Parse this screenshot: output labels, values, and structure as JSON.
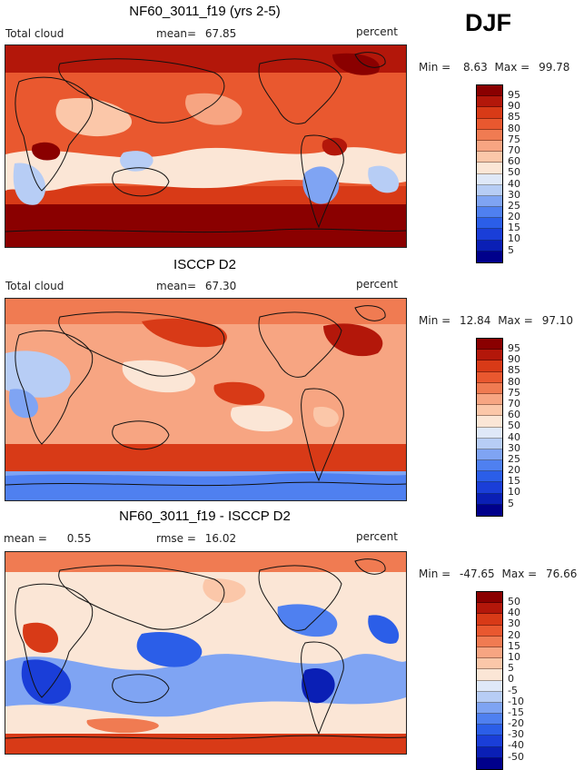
{
  "season": "DJF",
  "palette": {
    "c5": "#00008b",
    "c10": "#0a1fb5",
    "c15": "#1a3ed8",
    "c20": "#2b5ee8",
    "c25": "#4f80f0",
    "c30": "#7fa4f3",
    "c40": "#b7cdf5",
    "c50": "#dfe8f8",
    "c60": "#fbe6d6",
    "c70": "#fbc7a9",
    "c75": "#f7a582",
    "c80": "#f07b52",
    "c85": "#e9582f",
    "c90": "#d83a17",
    "c95": "#b3170a",
    "c100": "#8a0000"
  },
  "chart_data": [
    {
      "type": "heatmap",
      "title": "NF60_3011_f19 (yrs 2-5)",
      "left_label": "Total cloud",
      "mean_label": "mean=",
      "mean_value": "67.85",
      "units": "percent",
      "min_label": "Min =",
      "min_value": "8.63",
      "max_label": "Max =",
      "max_value": "99.78",
      "levels": [
        "95",
        "90",
        "85",
        "80",
        "75",
        "70",
        "60",
        "50",
        "40",
        "30",
        "25",
        "20",
        "15",
        "10",
        "5"
      ],
      "level_colors": [
        "#8a0000",
        "#b3170a",
        "#d83a17",
        "#e9582f",
        "#f07b52",
        "#f7a582",
        "#fbc7a9",
        "#fbe6d6",
        "#dfe8f8",
        "#b7cdf5",
        "#7fa4f3",
        "#4f80f0",
        "#2b5ee8",
        "#1a3ed8",
        "#0a1fb5",
        "#00008b"
      ]
    },
    {
      "type": "heatmap",
      "title": "ISCCP D2",
      "left_label": "Total cloud",
      "mean_label": "mean=",
      "mean_value": "67.30",
      "units": "percent",
      "min_label": "Min =",
      "min_value": "12.84",
      "max_label": "Max =",
      "max_value": "97.10",
      "levels": [
        "95",
        "90",
        "85",
        "80",
        "75",
        "70",
        "60",
        "50",
        "40",
        "30",
        "25",
        "20",
        "15",
        "10",
        "5"
      ],
      "level_colors": [
        "#8a0000",
        "#b3170a",
        "#d83a17",
        "#e9582f",
        "#f07b52",
        "#f7a582",
        "#fbc7a9",
        "#fbe6d6",
        "#dfe8f8",
        "#b7cdf5",
        "#7fa4f3",
        "#4f80f0",
        "#2b5ee8",
        "#1a3ed8",
        "#0a1fb5",
        "#00008b"
      ]
    },
    {
      "type": "heatmap",
      "title": "NF60_3011_f19 - ISCCP D2",
      "left_label": "mean =",
      "left_value": "0.55",
      "rmse_label": "rmse =",
      "rmse_value": "16.02",
      "units": "percent",
      "min_label": "Min =",
      "min_value": "-47.65",
      "max_label": "Max =",
      "max_value": "76.66",
      "levels": [
        "50",
        "40",
        "30",
        "20",
        "15",
        "10",
        "5",
        "0",
        "-5",
        "-10",
        "-15",
        "-20",
        "-30",
        "-40",
        "-50"
      ],
      "level_colors": [
        "#8a0000",
        "#b3170a",
        "#d83a17",
        "#e9582f",
        "#f07b52",
        "#f7a582",
        "#fbc7a9",
        "#fbe6d6",
        "#dfe8f8",
        "#b7cdf5",
        "#7fa4f3",
        "#4f80f0",
        "#2b5ee8",
        "#1a3ed8",
        "#0a1fb5",
        "#00008b"
      ]
    }
  ]
}
